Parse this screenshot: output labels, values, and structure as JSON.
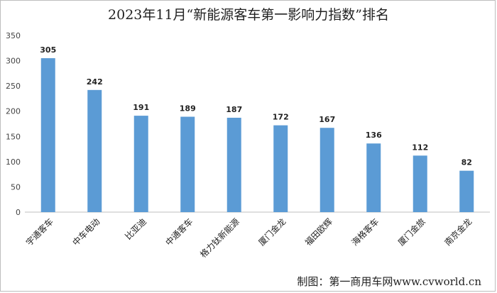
{
  "chart_data": {
    "type": "bar",
    "title": "2023年11月“新能源客车第一影响力指数”排名",
    "categories": [
      "宇通客车",
      "中车电动",
      "比亚迪",
      "中通客车",
      "格力钛新能源",
      "厦门金龙",
      "福田欧辉",
      "海格客车",
      "厦门金旅",
      "南京金龙"
    ],
    "values": [
      305,
      242,
      191,
      189,
      187,
      172,
      167,
      136,
      112,
      82
    ],
    "ylim": [
      0,
      350
    ],
    "yticks": [
      0,
      50,
      100,
      150,
      200,
      250,
      300,
      350
    ],
    "grid": false,
    "bar_color": "#5B9BD5",
    "show_data_labels": true
  },
  "credit": "制图：第一商用车网www.cvworld.cn"
}
